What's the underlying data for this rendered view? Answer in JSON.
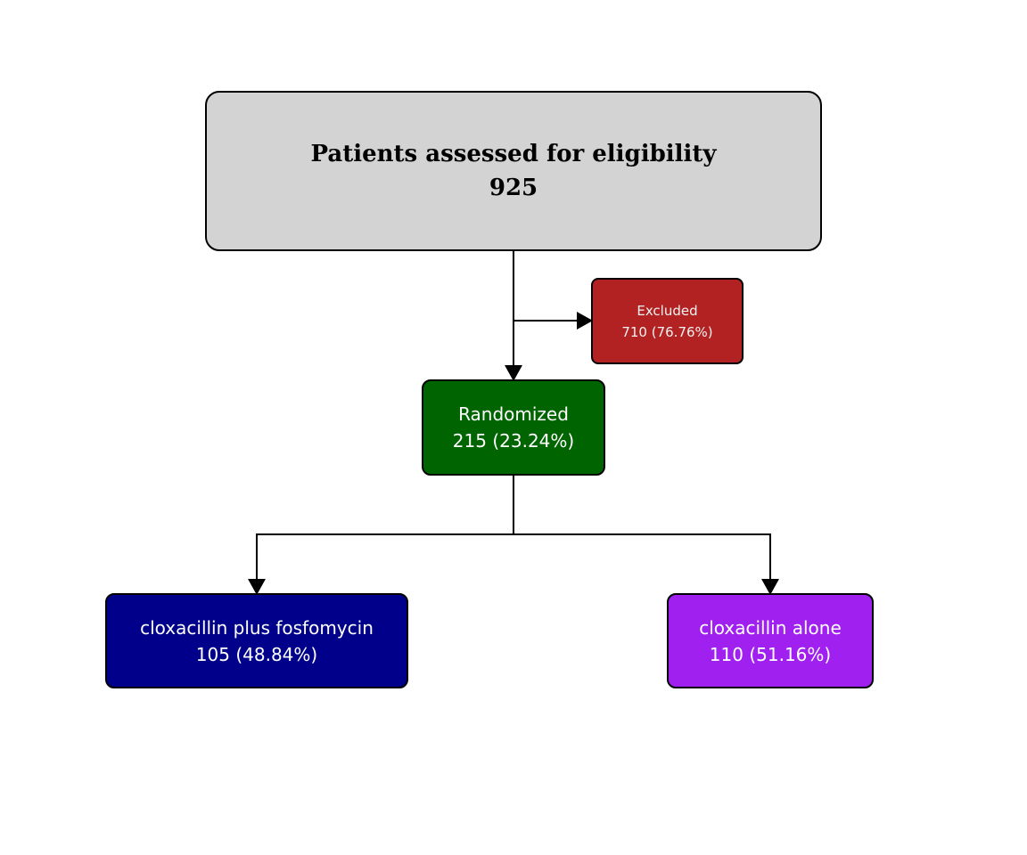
{
  "eligibility": {
    "label": "Patients assessed for eligibility",
    "count": "925",
    "color": "#d3d3d3"
  },
  "excluded": {
    "label": "Excluded",
    "count": "710 (76.76%)",
    "color": "#b22222"
  },
  "randomized": {
    "label": "Randomized",
    "count": "215 (23.24%)",
    "color": "#006400"
  },
  "arms": [
    {
      "label": "cloxacillin plus fosfomycin",
      "count": "105 (48.84%)",
      "color": "#00008b"
    },
    {
      "label": "cloxacillin alone",
      "count": "110 (51.16%)",
      "color": "#a020f0"
    }
  ]
}
